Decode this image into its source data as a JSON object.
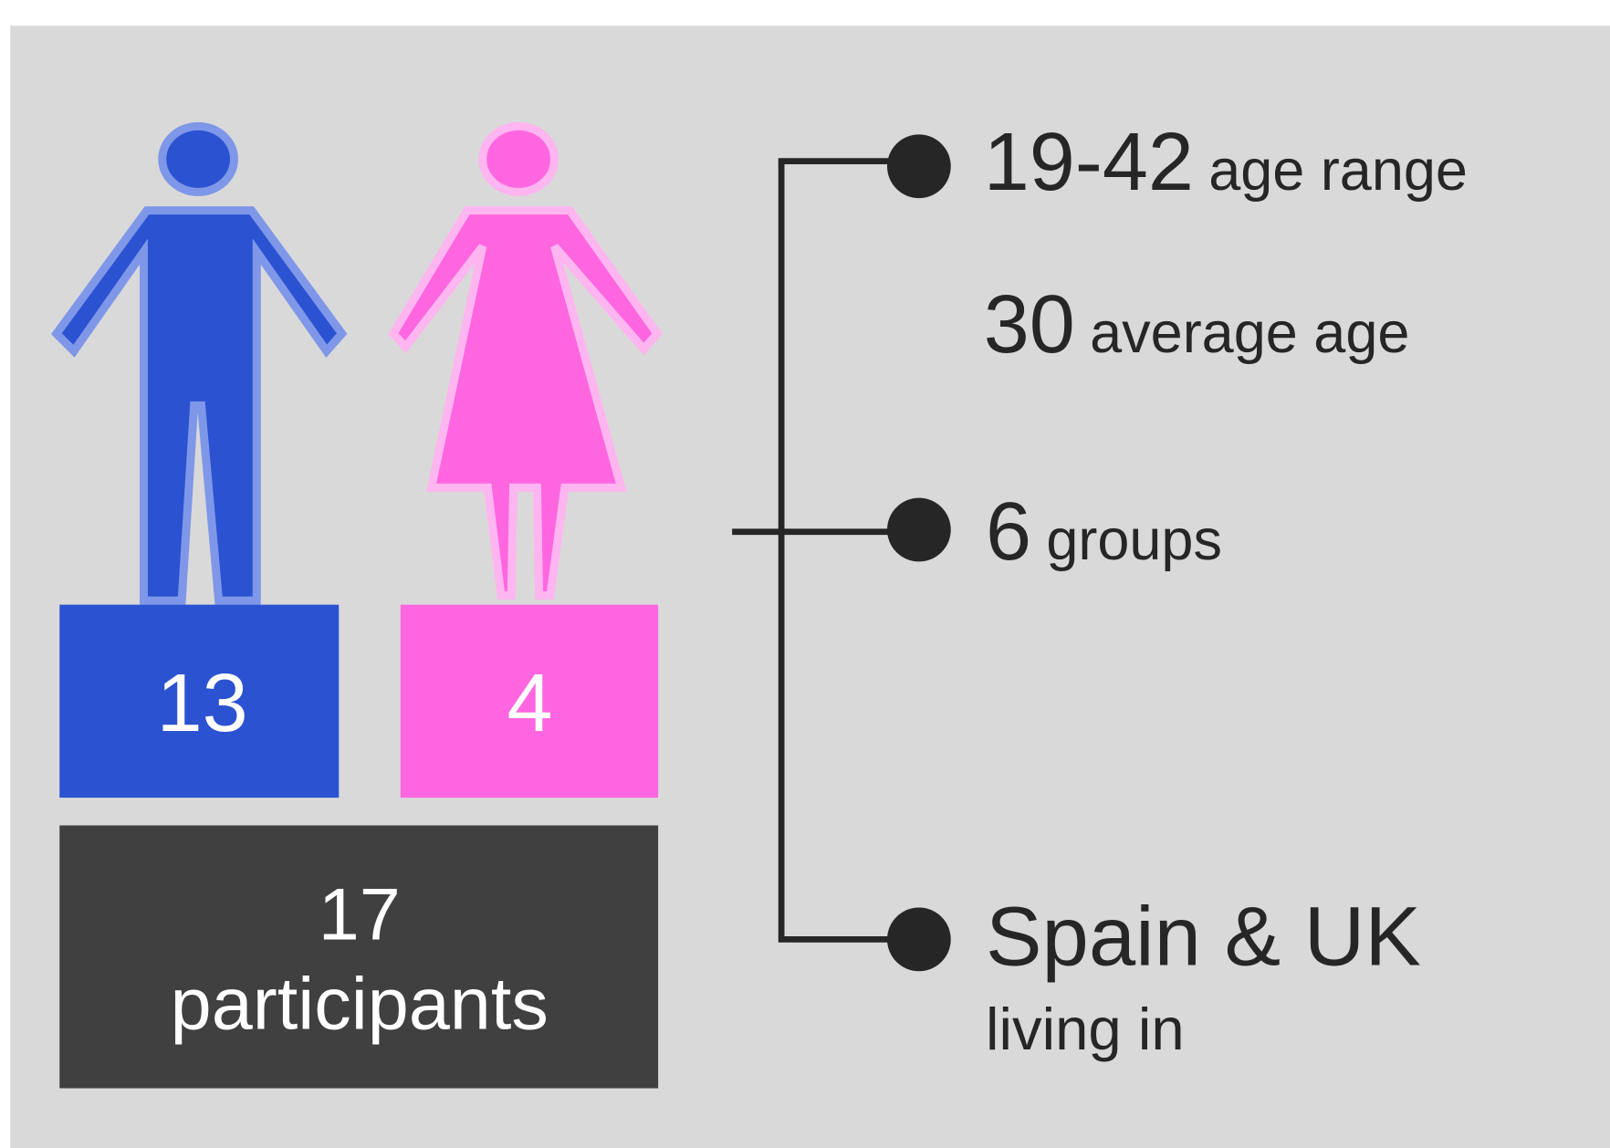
{
  "participants": {
    "male": {
      "count": 13
    },
    "female": {
      "count": 4
    },
    "total": {
      "count": 17,
      "label": "participants"
    }
  },
  "stats": [
    {
      "value": "19-42",
      "label": "age range"
    },
    {
      "value": "30",
      "label": "average age"
    },
    {
      "value": "6",
      "label": "groups"
    },
    {
      "value": "Spain & UK",
      "label": "living in"
    }
  ]
}
